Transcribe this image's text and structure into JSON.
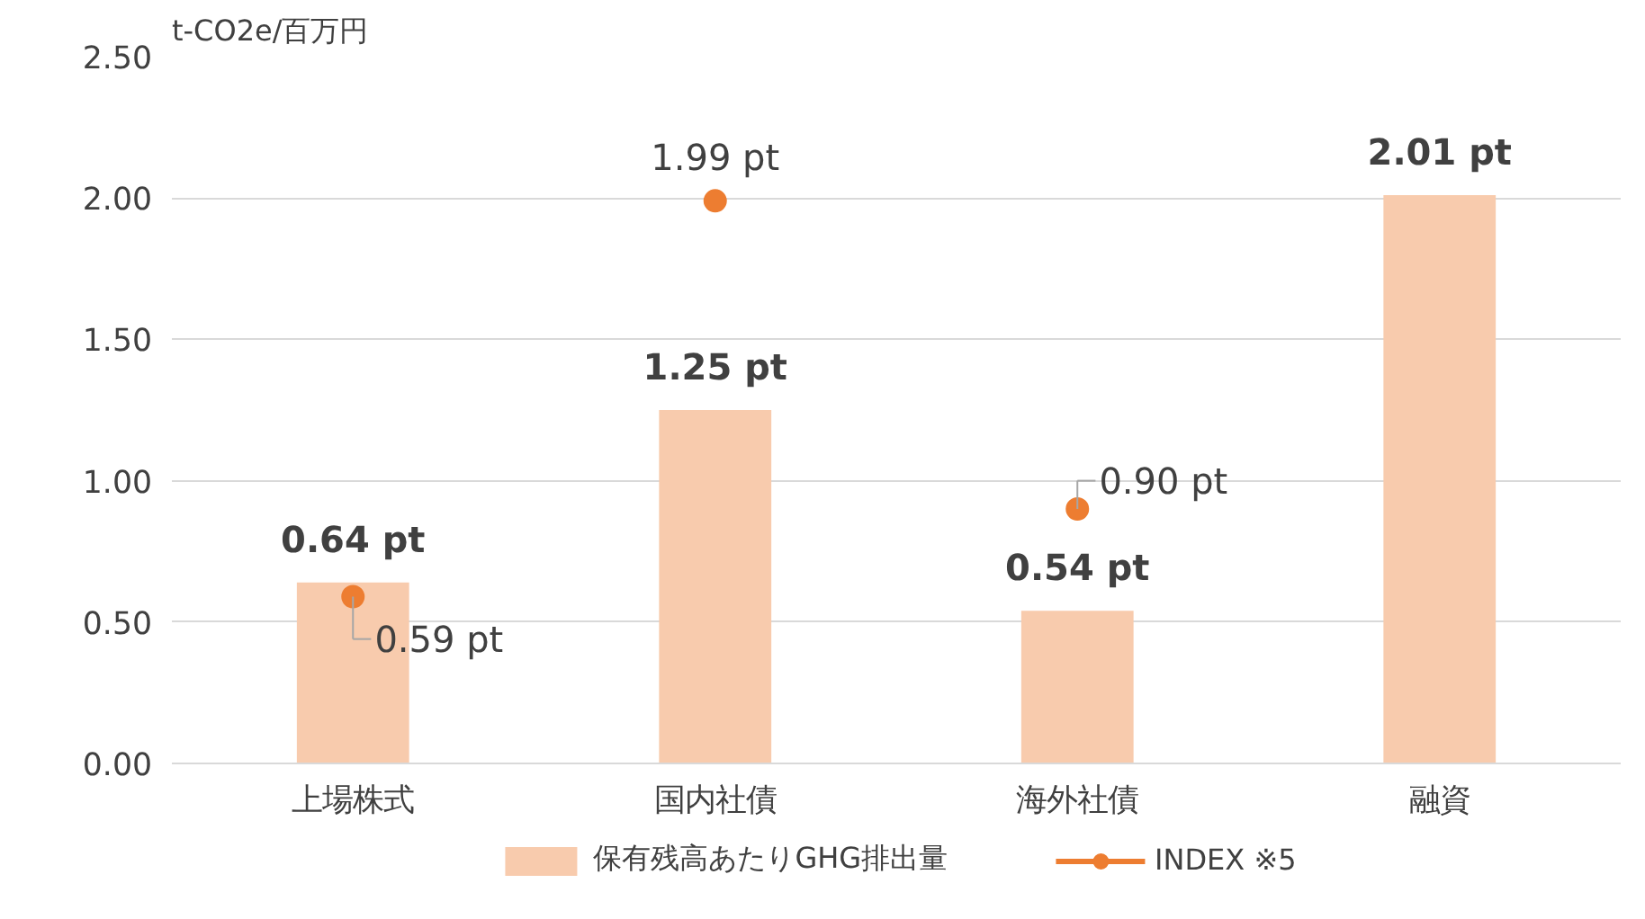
{
  "chart_data": {
    "type": "bar",
    "ylabel": "t-CO2e/百万円",
    "categories": [
      "上場株式",
      "国内社債",
      "海外社債",
      "融資"
    ],
    "series": [
      {
        "name": "保有残高あたりGHG排出量",
        "color": "#f8cbad",
        "values": [
          0.64,
          1.25,
          0.54,
          2.01
        ],
        "value_labels": [
          "0.64 pt",
          "1.25 pt",
          "0.54 pt",
          "2.01 pt"
        ]
      },
      {
        "name": "INDEX ※5",
        "type": "scatter",
        "color": "#ed7d31",
        "marker": "circle",
        "values": [
          0.59,
          1.99,
          0.9,
          null
        ],
        "value_labels": [
          "0.59 pt",
          "1.99 pt",
          "0.90 pt",
          null
        ]
      }
    ],
    "ylim": [
      0,
      2.5
    ],
    "yticks": [
      {
        "value": 0,
        "label": "0.00"
      },
      {
        "value": 0.5,
        "label": "0.50"
      },
      {
        "value": 1,
        "label": "1.00"
      },
      {
        "value": 1.5,
        "label": "1.50"
      },
      {
        "value": 2,
        "label": "2.00"
      },
      {
        "value": 2.5,
        "label": "2.50"
      }
    ],
    "grid": "y",
    "legend": "bottom"
  }
}
